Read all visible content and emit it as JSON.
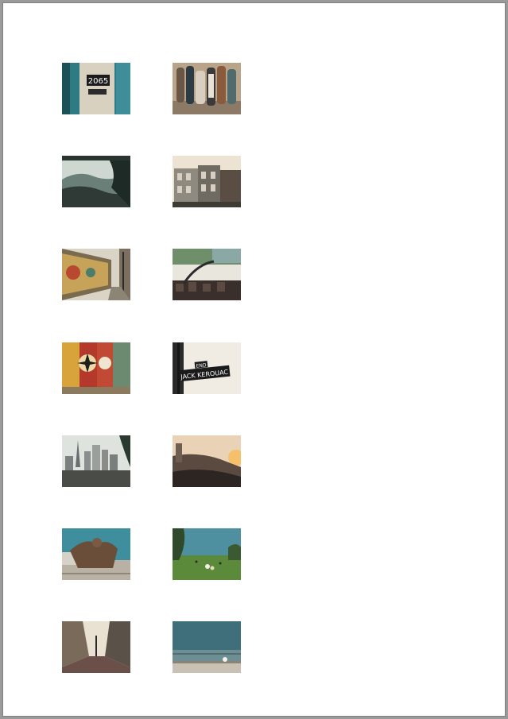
{
  "document": {
    "thumbnails": [
      {
        "id": "t1",
        "printed_text": "2065"
      },
      {
        "id": "t2"
      },
      {
        "id": "t3"
      },
      {
        "id": "t4"
      },
      {
        "id": "t5"
      },
      {
        "id": "t6"
      },
      {
        "id": "t7"
      },
      {
        "id": "t8",
        "sign_top": "END",
        "sign_main": "JACK KEROUAC"
      },
      {
        "id": "t9"
      },
      {
        "id": "t10"
      },
      {
        "id": "t11"
      },
      {
        "id": "t12"
      },
      {
        "id": "t13"
      },
      {
        "id": "t14"
      }
    ]
  }
}
